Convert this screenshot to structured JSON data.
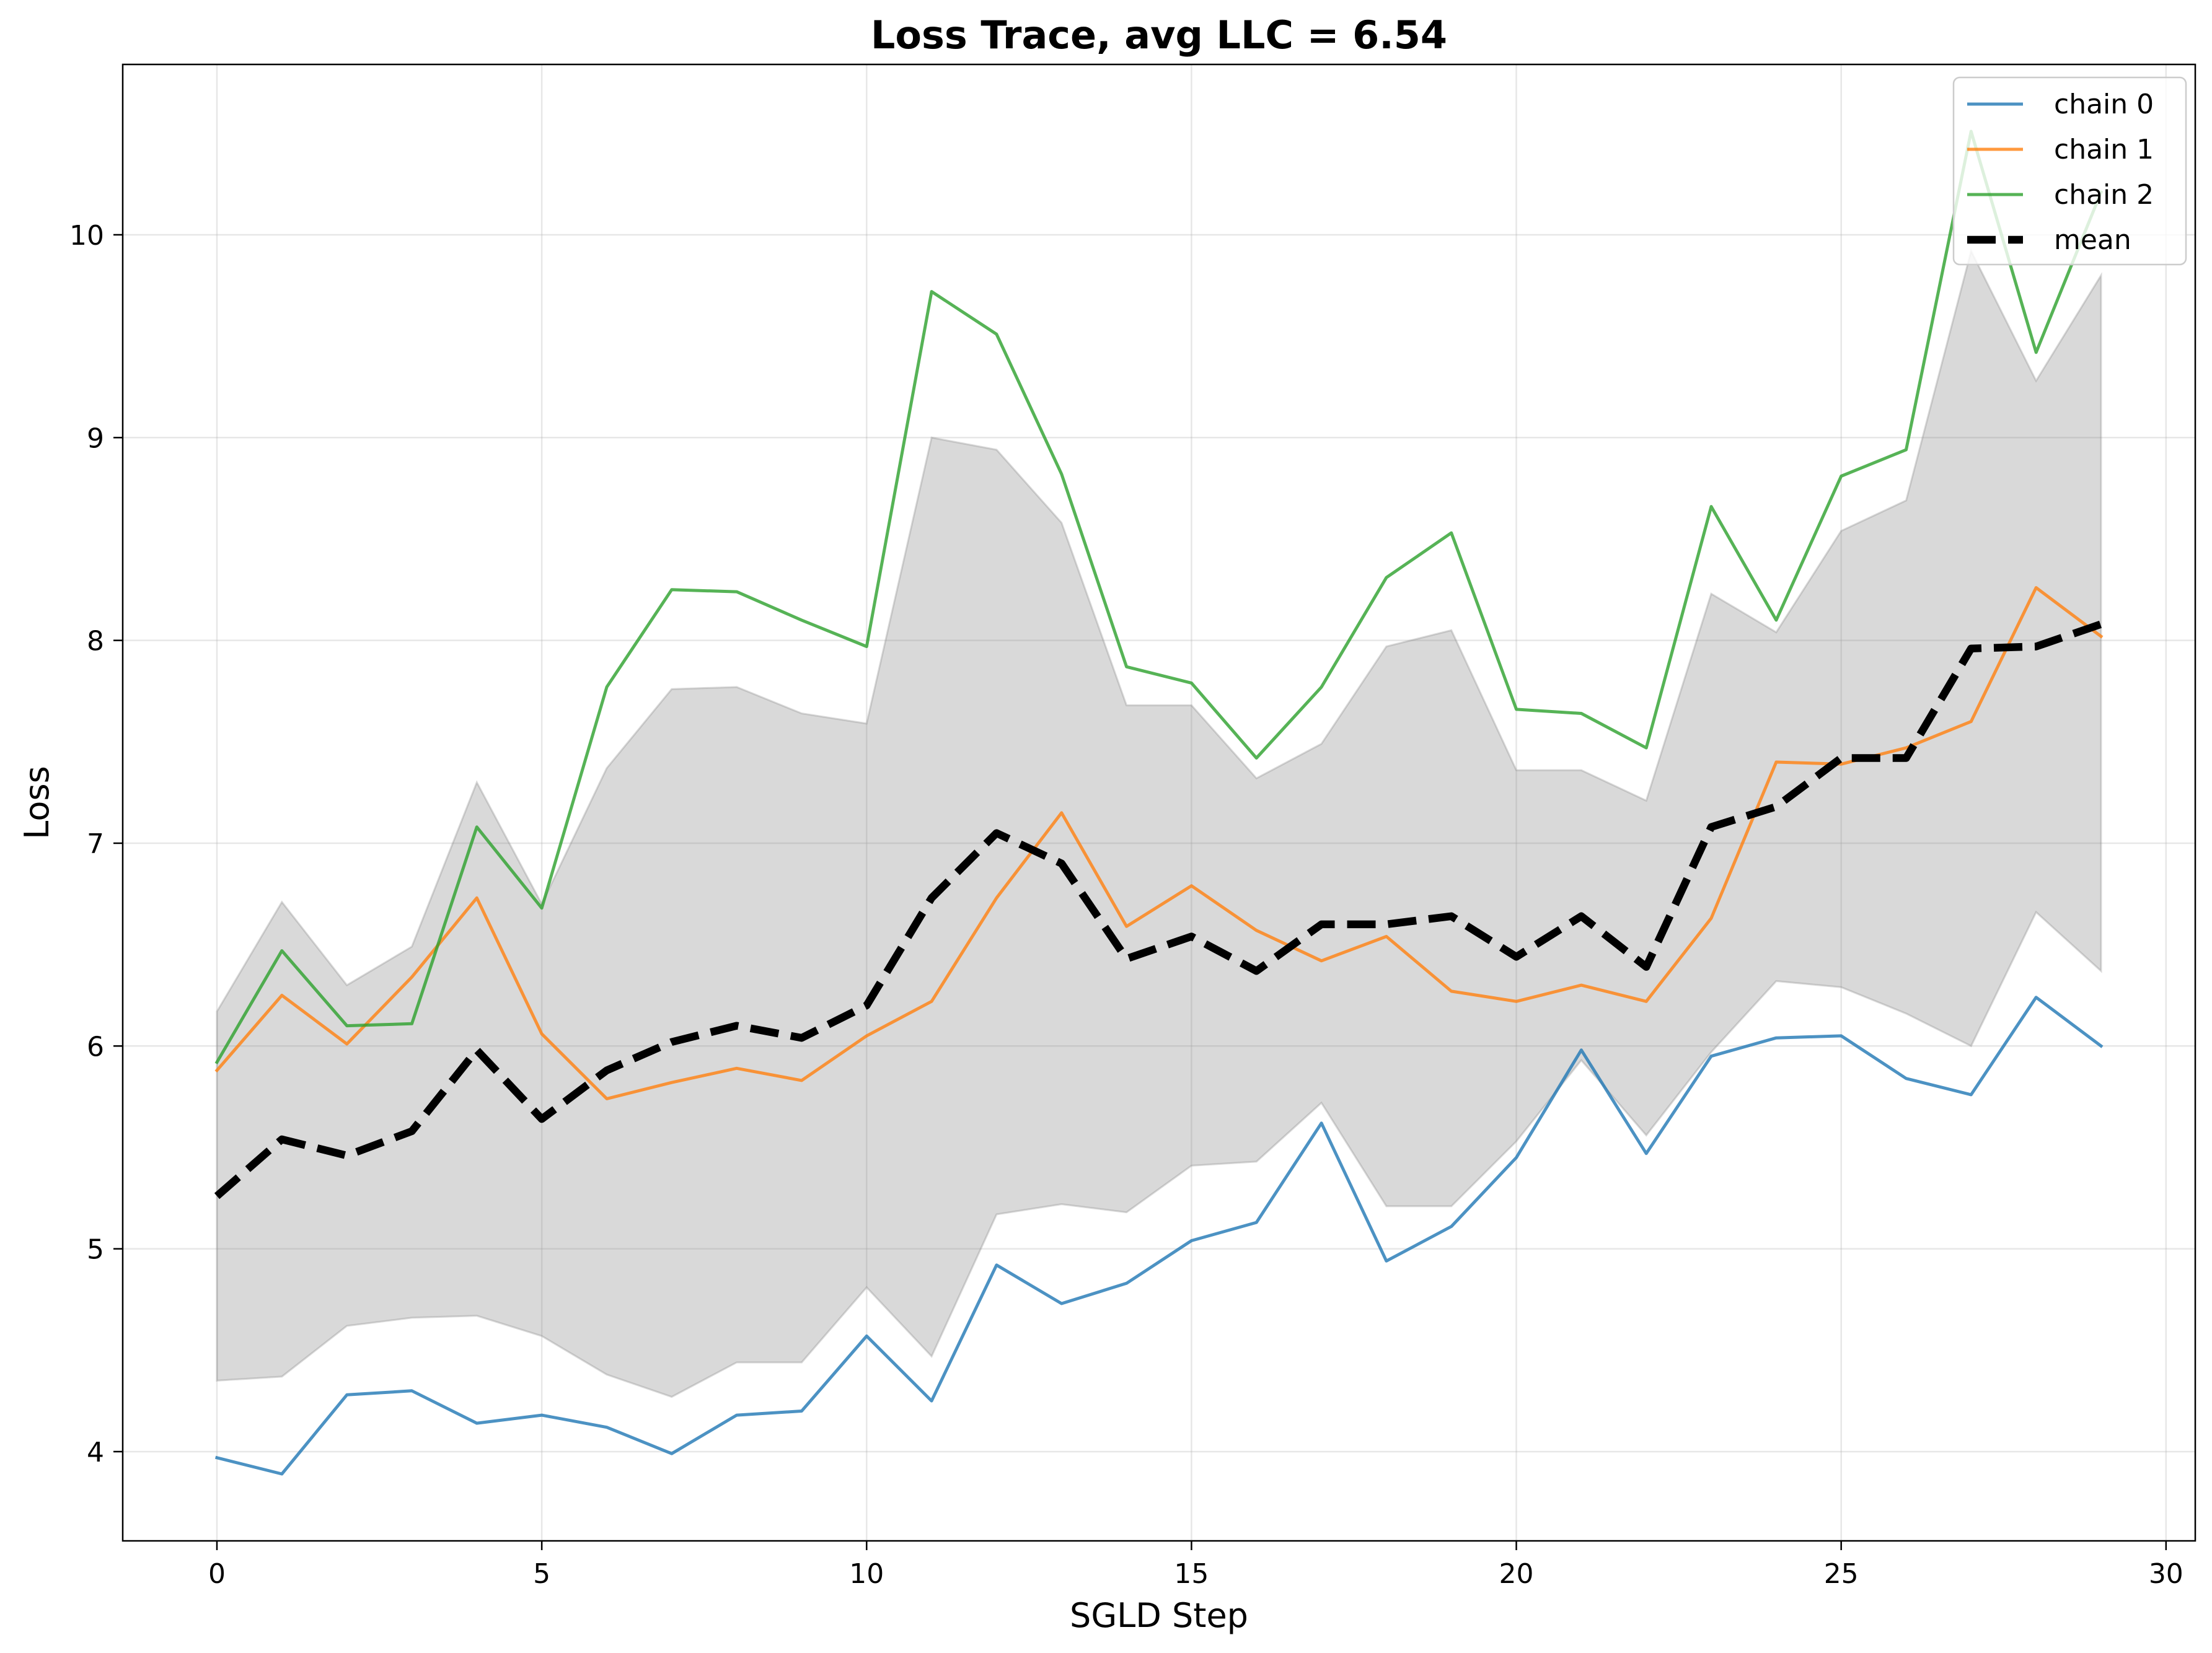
{
  "chart_data": {
    "type": "line",
    "title": "Loss Trace, avg LLC = 6.54",
    "xlabel": "SGLD Step",
    "ylabel": "Loss",
    "xlim": [
      -1.45,
      30.45
    ],
    "ylim": [
      3.56,
      10.84
    ],
    "xticks": [
      0,
      5,
      10,
      15,
      20,
      25,
      30
    ],
    "yticks": [
      4,
      5,
      6,
      7,
      8,
      9,
      10
    ],
    "grid": true,
    "legend_position": "top-right",
    "x": [
      0,
      1,
      2,
      3,
      4,
      5,
      6,
      7,
      8,
      9,
      10,
      11,
      12,
      13,
      14,
      15,
      16,
      17,
      18,
      19,
      20,
      21,
      22,
      23,
      24,
      25,
      26,
      27,
      28,
      29
    ],
    "series": [
      {
        "name": "chain 0",
        "color": "#1f77b4",
        "style": "solid",
        "values": [
          3.97,
          3.89,
          4.28,
          4.3,
          4.14,
          4.18,
          4.12,
          3.99,
          4.18,
          4.2,
          4.57,
          4.25,
          4.92,
          4.73,
          4.83,
          5.04,
          5.13,
          5.62,
          4.94,
          5.11,
          5.45,
          5.98,
          5.47,
          5.95,
          6.04,
          6.05,
          5.84,
          5.76,
          6.24,
          6.0
        ]
      },
      {
        "name": "chain 1",
        "color": "#ff7f0e",
        "style": "solid",
        "values": [
          5.88,
          6.25,
          6.01,
          6.34,
          6.73,
          6.06,
          5.74,
          5.82,
          5.89,
          5.83,
          6.05,
          6.22,
          6.73,
          7.15,
          6.59,
          6.79,
          6.57,
          6.42,
          6.54,
          6.27,
          6.22,
          6.3,
          6.22,
          6.63,
          7.4,
          7.39,
          7.47,
          7.6,
          8.26,
          8.02
        ]
      },
      {
        "name": "chain 2",
        "color": "#2ca02c",
        "style": "solid",
        "values": [
          5.92,
          6.47,
          6.1,
          6.11,
          7.08,
          6.68,
          7.77,
          8.25,
          8.24,
          8.1,
          7.97,
          9.72,
          9.51,
          8.82,
          7.87,
          7.79,
          7.42,
          7.77,
          8.31,
          8.53,
          7.66,
          7.64,
          7.47,
          8.66,
          8.1,
          8.81,
          8.94,
          10.51,
          9.42,
          10.21
        ]
      },
      {
        "name": "mean",
        "color": "#000000",
        "style": "dashed",
        "values": [
          5.26,
          5.54,
          5.46,
          5.58,
          5.98,
          5.64,
          5.88,
          6.02,
          6.1,
          6.04,
          6.2,
          6.73,
          7.05,
          6.9,
          6.43,
          6.54,
          6.37,
          6.6,
          6.6,
          6.64,
          6.44,
          6.64,
          6.39,
          7.08,
          7.18,
          7.42,
          7.42,
          7.96,
          7.97,
          8.08
        ]
      }
    ],
    "band": {
      "color": "#808080",
      "lower": [
        4.35,
        4.37,
        4.62,
        4.66,
        4.67,
        4.57,
        4.38,
        4.27,
        4.44,
        4.44,
        4.81,
        4.47,
        5.17,
        5.22,
        5.18,
        5.41,
        5.43,
        5.72,
        5.21,
        5.21,
        5.53,
        5.93,
        5.56,
        5.97,
        6.32,
        6.29,
        6.16,
        6.0,
        6.66,
        6.37
      ],
      "upper": [
        6.17,
        6.71,
        6.3,
        6.49,
        7.3,
        6.7,
        7.37,
        7.76,
        7.77,
        7.64,
        7.59,
        9.0,
        8.94,
        8.58,
        7.68,
        7.68,
        7.32,
        7.49,
        7.97,
        8.05,
        7.36,
        7.36,
        7.21,
        8.23,
        8.04,
        8.54,
        8.69,
        9.92,
        9.28,
        9.8
      ]
    }
  }
}
